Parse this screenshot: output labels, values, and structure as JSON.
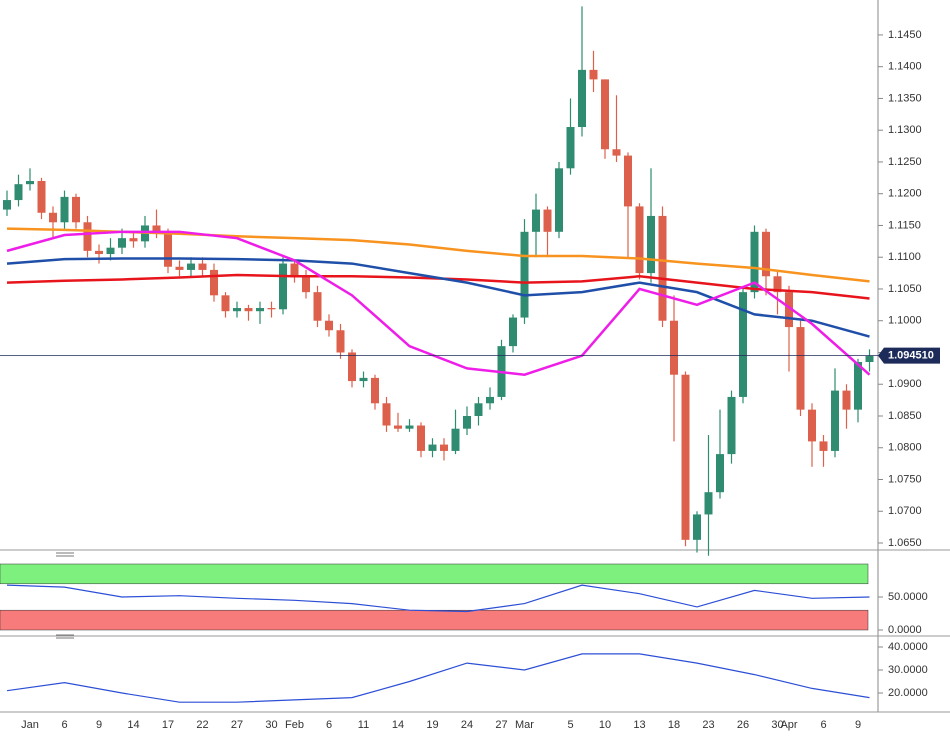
{
  "chart_data": [
    {
      "type": "candlestick",
      "categories": [
        null,
        null,
        "Jan",
        null,
        null,
        "6",
        null,
        null,
        "9",
        null,
        null,
        "14",
        null,
        null,
        "17",
        null,
        null,
        "22",
        null,
        null,
        "27",
        null,
        null,
        "30",
        null,
        "Feb",
        null,
        null,
        "6",
        null,
        null,
        "11",
        null,
        null,
        "14",
        null,
        null,
        "19",
        null,
        null,
        "24",
        null,
        null,
        "27",
        null,
        "Mar",
        null,
        null,
        null,
        "5",
        null,
        null,
        "10",
        null,
        null,
        "13",
        null,
        null,
        "18",
        null,
        null,
        "23",
        null,
        null,
        "26",
        null,
        null,
        "30",
        "Apr",
        null,
        null,
        "6",
        null,
        null,
        "9",
        null
      ],
      "open": [
        1.1175,
        1.119,
        1.1215,
        1.122,
        1.117,
        1.1155,
        1.1195,
        1.1155,
        1.111,
        1.1105,
        1.1115,
        1.113,
        1.1125,
        1.115,
        1.114,
        1.1085,
        1.108,
        1.109,
        1.108,
        1.104,
        1.1015,
        1.102,
        1.1015,
        1.102,
        1.1018,
        1.109,
        1.107,
        1.1045,
        1.1,
        1.0985,
        1.095,
        1.0905,
        1.091,
        1.087,
        1.0835,
        1.083,
        1.0835,
        1.0795,
        1.0805,
        1.0795,
        1.083,
        1.085,
        1.087,
        1.088,
        1.096,
        1.1005,
        1.114,
        1.1175,
        1.114,
        1.124,
        1.1305,
        1.1395,
        1.138,
        1.127,
        1.126,
        1.118,
        1.1075,
        1.1165,
        1.1,
        1.0915,
        1.0655,
        1.0695,
        1.073,
        1.079,
        1.088,
        1.1045,
        1.114,
        1.107,
        1.1045,
        1.099,
        1.086,
        1.081,
        1.0795,
        1.089,
        1.086,
        1.0935
      ],
      "high": [
        1.1205,
        1.123,
        1.124,
        1.1225,
        1.118,
        1.1205,
        1.12,
        1.1165,
        1.112,
        1.113,
        1.1145,
        1.114,
        1.1165,
        1.1175,
        1.1145,
        1.1095,
        1.11,
        1.11,
        1.109,
        1.1045,
        1.103,
        1.1025,
        1.103,
        1.103,
        1.11,
        1.1095,
        1.108,
        1.1055,
        1.101,
        1.0995,
        1.0955,
        1.092,
        1.0915,
        1.088,
        1.0855,
        1.0845,
        1.084,
        1.0815,
        1.0815,
        1.086,
        1.0865,
        1.088,
        1.0895,
        1.097,
        1.101,
        1.116,
        1.12,
        1.118,
        1.125,
        1.135,
        1.1495,
        1.1425,
        1.138,
        1.1355,
        1.1265,
        1.1185,
        1.124,
        1.118,
        1.104,
        1.092,
        1.07,
        1.082,
        1.086,
        1.089,
        1.105,
        1.115,
        1.1145,
        1.108,
        1.1055,
        1.1,
        1.087,
        1.082,
        1.0925,
        1.09,
        1.094,
        1.0955
      ],
      "low": [
        1.1165,
        1.118,
        1.1205,
        1.116,
        1.113,
        1.1145,
        1.1145,
        1.11,
        1.109,
        1.1095,
        1.1105,
        1.1115,
        1.1115,
        1.113,
        1.1075,
        1.107,
        1.107,
        1.107,
        1.103,
        1.1005,
        1.1005,
        1.1,
        1.0995,
        1.1005,
        1.101,
        1.106,
        1.1035,
        1.099,
        1.0975,
        1.094,
        1.0895,
        1.0895,
        1.086,
        1.0825,
        1.0825,
        1.0825,
        1.0785,
        1.0785,
        1.078,
        1.079,
        1.082,
        1.0835,
        1.086,
        1.0875,
        1.095,
        1.0995,
        1.11,
        1.11,
        1.113,
        1.123,
        1.129,
        1.136,
        1.1255,
        1.125,
        1.11,
        1.1065,
        1.106,
        1.099,
        1.081,
        1.0645,
        1.0635,
        1.063,
        1.072,
        1.0775,
        1.087,
        1.1035,
        1.104,
        1.101,
        1.092,
        1.085,
        1.077,
        1.077,
        1.0785,
        1.083,
        1.084,
        1.092
      ],
      "close": [
        1.119,
        1.1215,
        1.122,
        1.117,
        1.1155,
        1.1195,
        1.1155,
        1.111,
        1.1105,
        1.1115,
        1.113,
        1.1125,
        1.115,
        1.114,
        1.1085,
        1.108,
        1.109,
        1.108,
        1.104,
        1.1015,
        1.102,
        1.1015,
        1.102,
        1.1018,
        1.109,
        1.107,
        1.1045,
        1.1,
        1.0985,
        1.095,
        1.0905,
        1.091,
        1.087,
        1.0835,
        1.083,
        1.0835,
        1.0795,
        1.0805,
        1.0795,
        1.083,
        1.085,
        1.087,
        1.088,
        1.096,
        1.1005,
        1.114,
        1.1175,
        1.114,
        1.124,
        1.1305,
        1.1395,
        1.138,
        1.127,
        1.126,
        1.118,
        1.1075,
        1.1165,
        1.1,
        1.0915,
        1.0655,
        1.0695,
        1.073,
        1.079,
        1.088,
        1.1045,
        1.114,
        1.107,
        1.1045,
        1.099,
        1.086,
        1.081,
        1.0795,
        1.089,
        1.086,
        1.0935,
        1.0945
      ],
      "up_color": "#2f8c70",
      "down_color": "#dc604b",
      "ylim": [
        1.0639,
        1.1505
      ],
      "yticks": [
        {
          "value": 1.065,
          "label": "1.0650"
        },
        {
          "value": 1.07,
          "label": "1.0700"
        },
        {
          "value": 1.075,
          "label": "1.0750"
        },
        {
          "value": 1.08,
          "label": "1.0800"
        },
        {
          "value": 1.085,
          "label": "1.0850"
        },
        {
          "value": 1.09,
          "label": "1.0900"
        },
        {
          "value": 1.095,
          "label": "1.0950"
        },
        {
          "value": 1.1,
          "label": "1.1000"
        },
        {
          "value": 1.105,
          "label": "1.1050"
        },
        {
          "value": 1.11,
          "label": "1.1100"
        },
        {
          "value": 1.115,
          "label": "1.1150"
        },
        {
          "value": 1.12,
          "label": "1.1200"
        },
        {
          "value": 1.125,
          "label": "1.1250"
        },
        {
          "value": 1.13,
          "label": "1.1300"
        },
        {
          "value": 1.135,
          "label": "1.1350"
        },
        {
          "value": 1.14,
          "label": "1.1400"
        },
        {
          "value": 1.145,
          "label": "1.1450"
        }
      ],
      "last_price": {
        "value": 1.09451,
        "label": "1.094510"
      },
      "overlay_x": [
        0,
        5,
        10,
        15,
        20,
        25,
        30,
        35,
        40,
        45,
        50,
        55,
        60,
        65,
        70,
        75
      ],
      "overlays": [
        {
          "color": "#f7931e",
          "values": [
            1.1145,
            1.1143,
            1.114,
            1.1137,
            1.1133,
            1.113,
            1.1127,
            1.112,
            1.111,
            1.1102,
            1.1102,
            1.1098,
            1.109,
            1.1083,
            1.1072,
            1.1062
          ]
        },
        {
          "color": "#e8141c",
          "values": [
            1.106,
            1.1063,
            1.1065,
            1.1068,
            1.1072,
            1.107,
            1.107,
            1.1068,
            1.1065,
            1.106,
            1.1062,
            1.107,
            1.106,
            1.105,
            1.1045,
            1.1035
          ]
        },
        {
          "color": "#1f4fa8",
          "values": [
            1.109,
            1.1097,
            1.1098,
            1.1098,
            1.1097,
            1.1095,
            1.109,
            1.1075,
            1.106,
            1.104,
            1.1045,
            1.106,
            1.1045,
            1.101,
            1.1,
            1.0975
          ]
        },
        {
          "color": "#ee1ee8",
          "values": [
            1.111,
            1.1135,
            1.114,
            1.114,
            1.113,
            1.1095,
            1.104,
            1.096,
            1.0925,
            1.0915,
            1.0945,
            1.105,
            1.1025,
            1.106,
            1.0995,
            1.0915
          ]
        }
      ]
    },
    {
      "type": "line",
      "color": "#2c4fd6",
      "x": [
        0,
        5,
        10,
        15,
        20,
        25,
        30,
        35,
        40,
        45,
        50,
        55,
        60,
        65,
        70,
        75
      ],
      "values": [
        68,
        65,
        50,
        52,
        48,
        45,
        40,
        30,
        28,
        40,
        68,
        55,
        35,
        60,
        48,
        50
      ],
      "ylim": [
        0,
        100
      ],
      "yticks": [
        {
          "value": 50,
          "label": "50.0000"
        },
        {
          "value": 0,
          "label": "0.0000"
        }
      ],
      "overbought": 70,
      "oversold": 30,
      "overbought_color": "#7ef07e",
      "oversold_color": "#f77b7b"
    },
    {
      "type": "line",
      "color": "#2c4fd6",
      "x": [
        0,
        5,
        10,
        15,
        20,
        25,
        30,
        35,
        40,
        45,
        50,
        55,
        60,
        65,
        70,
        75
      ],
      "values": [
        21,
        24.5,
        20,
        16,
        16,
        17,
        18,
        25,
        33,
        30,
        37,
        37,
        33,
        28,
        22,
        18
      ],
      "ylim": [
        13,
        45
      ],
      "yticks": [
        {
          "value": 40,
          "label": "40.0000"
        },
        {
          "value": 30,
          "label": "30.0000"
        },
        {
          "value": 20,
          "label": "20.0000"
        }
      ]
    }
  ]
}
